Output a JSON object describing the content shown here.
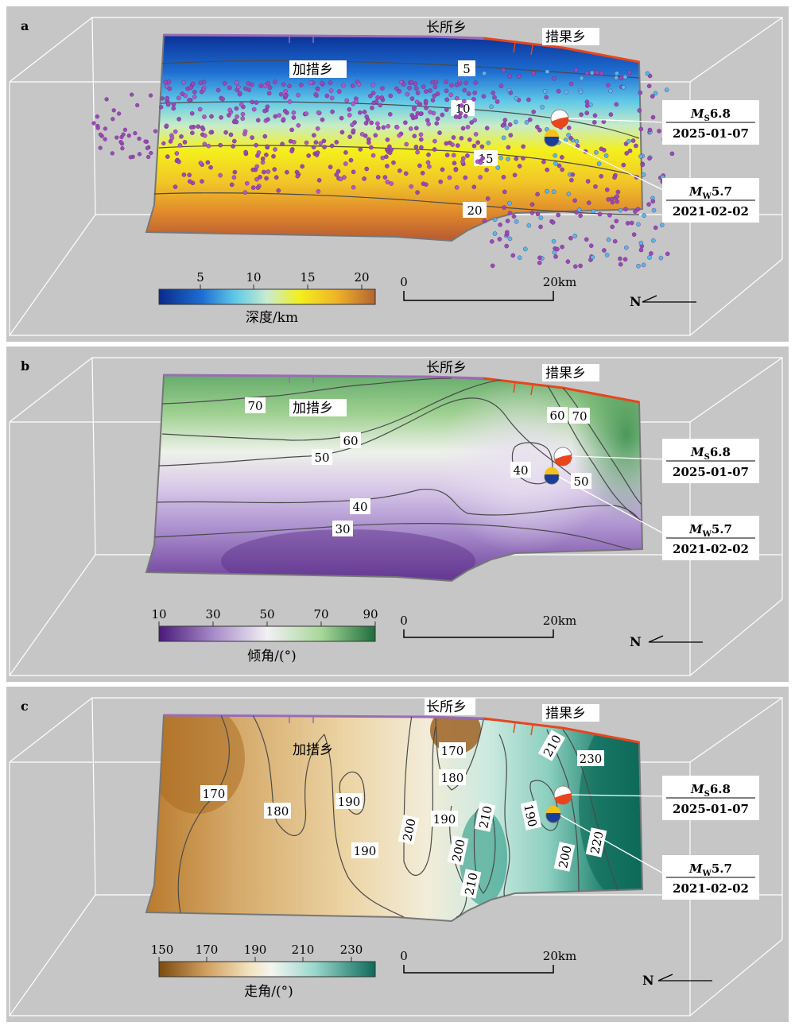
{
  "colors": {
    "panel_bg": "#c6c6c6",
    "fault_trace_purple": "#9a6cb6",
    "fault_trace_red": "#e8451d",
    "contour_line": "#4a4a4a",
    "box_edges": "#ffffff"
  },
  "shared": {
    "town_changsuo": "长所乡",
    "town_cuoguo": "措果乡",
    "town_jiacuo": "加措乡",
    "event1_label": "M",
    "event1_sub": "S",
    "event1_mag": "6.8",
    "event1_date": "2025-01-07",
    "event2_label": "M",
    "event2_sub": "W",
    "event2_mag": "5.7",
    "event2_date": "2021-02-02",
    "scale_start": "0",
    "scale_end": "20km",
    "north": "N"
  },
  "panels": [
    {
      "letter": "a",
      "colorbar_title": "深度/km",
      "colorbar_ticks": [
        "5",
        "10",
        "15",
        "20"
      ],
      "colorbar_range": [
        2,
        22
      ],
      "colorbar_colors": [
        "#0a2a8c",
        "#1e6ed2",
        "#5fc8e8",
        "#c8ecd0",
        "#f2f01c",
        "#f0b428",
        "#b46432"
      ],
      "contour_labels": [
        "5",
        "10",
        "15",
        "20"
      ],
      "seismicity": "purple-dots"
    },
    {
      "letter": "b",
      "colorbar_title": "倾角/(°)",
      "colorbar_ticks": [
        "10",
        "30",
        "50",
        "70",
        "90"
      ],
      "colorbar_range": [
        10,
        90
      ],
      "colorbar_colors": [
        "#4a1a7a",
        "#a68ac8",
        "#f2f0f4",
        "#a8d89a",
        "#1e6e3c"
      ],
      "contour_labels": [
        "70",
        "60",
        "50",
        "40",
        "30",
        "60",
        "70",
        "40",
        "50"
      ]
    },
    {
      "letter": "c",
      "colorbar_title": "走角/(°)",
      "colorbar_ticks": [
        "150",
        "170",
        "190",
        "210",
        "230"
      ],
      "colorbar_range": [
        150,
        240
      ],
      "colorbar_colors": [
        "#7a4a10",
        "#d2a060",
        "#f2e4c0",
        "#f4f4f0",
        "#9ad8cc",
        "#0e6a5a"
      ],
      "contour_labels": [
        "170",
        "180",
        "190",
        "190",
        "200",
        "170",
        "180",
        "190",
        "200",
        "210",
        "210",
        "190",
        "210",
        "230",
        "200",
        "220"
      ]
    }
  ]
}
